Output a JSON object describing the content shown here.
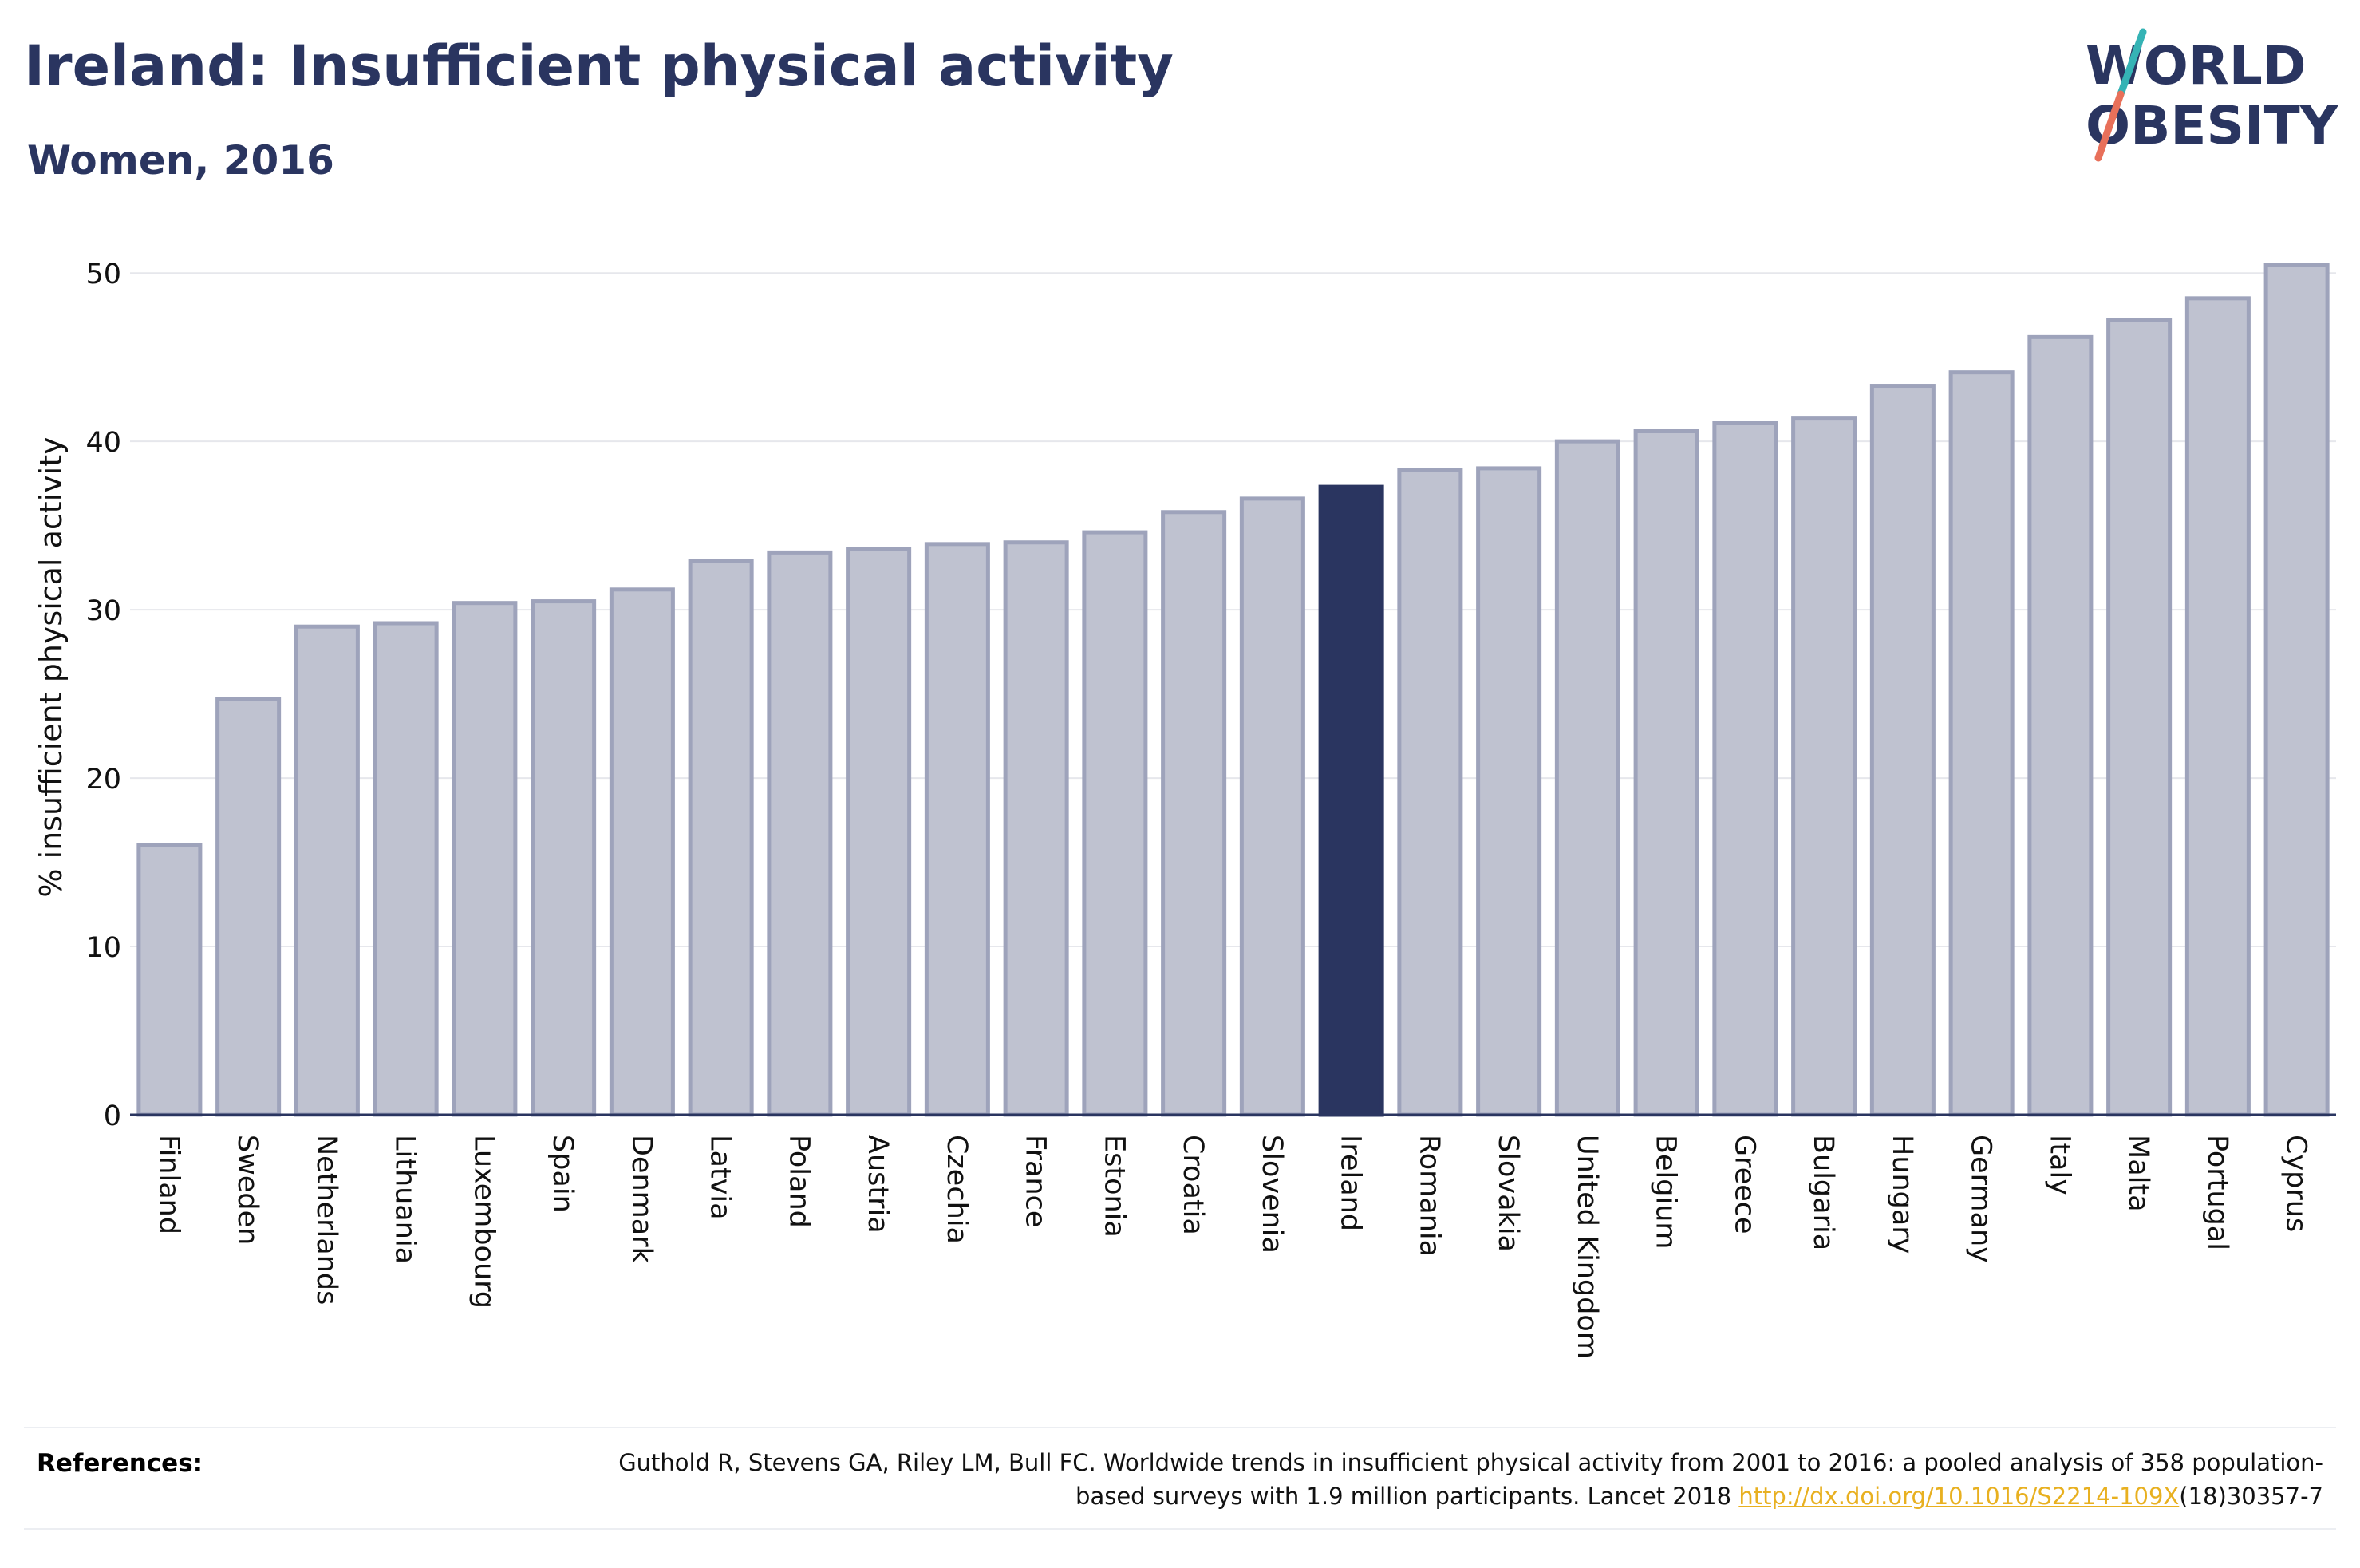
{
  "header": {
    "title": "Ireland: Insufficient physical activity",
    "subtitle": "Women, 2016"
  },
  "logo": {
    "line1": "WORLD",
    "line2": "OBESITY",
    "slash_color_top": "#35b3b5",
    "slash_color_bottom": "#e8705a"
  },
  "chart_data": {
    "type": "bar",
    "ylabel": "% insufficient physical activity",
    "ylim": [
      0,
      52
    ],
    "yticks": [
      0,
      10,
      20,
      30,
      40,
      50
    ],
    "grid": true,
    "highlight": "Ireland",
    "colors": {
      "bar": "#bfc2d0",
      "bar_stroke": "#9ea3bb",
      "highlight": "#2a3560"
    },
    "categories": [
      "Finland",
      "Sweden",
      "Netherlands",
      "Lithuania",
      "Luxembourg",
      "Spain",
      "Denmark",
      "Latvia",
      "Poland",
      "Austria",
      "Czechia",
      "France",
      "Estonia",
      "Croatia",
      "Slovenia",
      "Ireland",
      "Romania",
      "Slovakia",
      "United Kingdom",
      "Belgium",
      "Greece",
      "Bulgaria",
      "Hungary",
      "Germany",
      "Italy",
      "Malta",
      "Portugal",
      "Cyprus"
    ],
    "values": [
      16.0,
      24.7,
      29.0,
      29.2,
      30.4,
      30.5,
      31.2,
      32.9,
      33.4,
      33.6,
      33.9,
      34.0,
      34.6,
      35.8,
      36.6,
      37.3,
      38.3,
      38.4,
      40.0,
      40.6,
      41.1,
      41.4,
      43.3,
      44.1,
      46.2,
      47.2,
      48.5,
      50.5
    ]
  },
  "references": {
    "label": "References:",
    "text_before": "Guthold R, Stevens GA, Riley LM, Bull FC. Worldwide trends in insufficient physical activity from 2001 to 2016: a pooled analysis of 358 population-based surveys with 1.9 million participants. Lancet 2018 ",
    "link": "http://dx.doi.org/10.1016/S2214-109X",
    "text_after": "(18)30357-7"
  }
}
